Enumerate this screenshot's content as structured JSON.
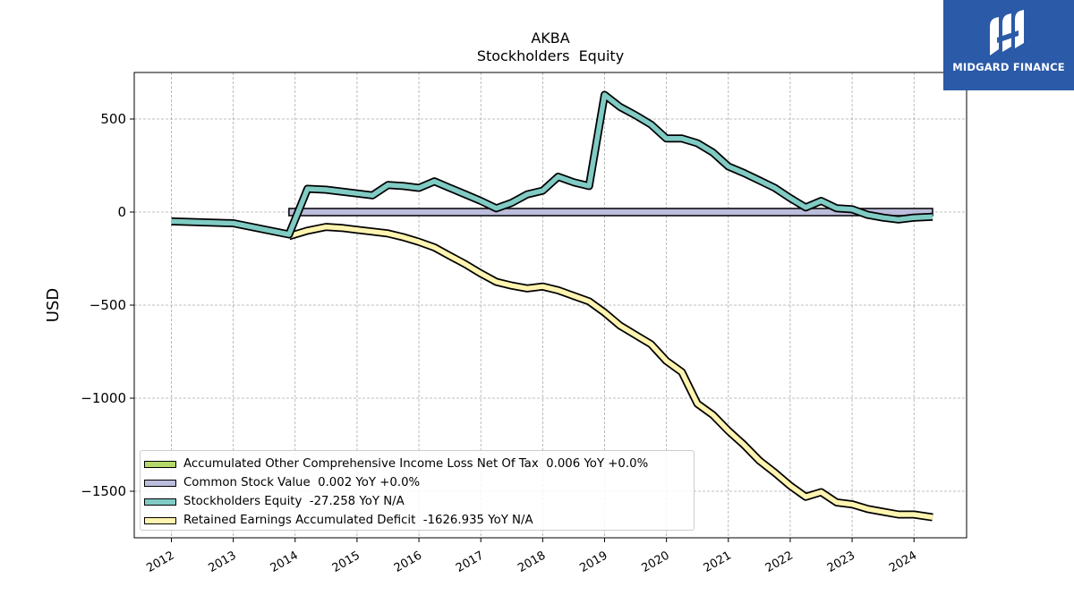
{
  "chart_data": {
    "type": "line",
    "title": "AKBA",
    "subtitle": "Stockholders  Equity",
    "ylabel": "USD",
    "xlabel": "",
    "ylim": [
      -1750,
      750
    ],
    "xlim": [
      2011.4,
      2024.85
    ],
    "yticks": [
      500,
      0,
      -500,
      -1000,
      -1500
    ],
    "ytick_labels": [
      "500",
      "0",
      "−500",
      "−1000",
      "−1500"
    ],
    "xticks": [
      2012,
      2013,
      2014,
      2015,
      2016,
      2017,
      2018,
      2019,
      2020,
      2021,
      2022,
      2023,
      2024
    ],
    "xtick_labels": [
      "2012",
      "2013",
      "2014",
      "2015",
      "2016",
      "2017",
      "2018",
      "2019",
      "2020",
      "2021",
      "2022",
      "2023",
      "2024"
    ],
    "grid": true,
    "legend_position": "lower-left",
    "series": [
      {
        "name": "Accumulated Other Comprehensive Income Loss Net Of Tax  0.006 YoY +0.0%",
        "color": "#b5d86a",
        "x": [],
        "y": []
      },
      {
        "name": "Common Stock Value  0.002 YoY +0.0%",
        "color": "#bcbddc",
        "x": [
          2013.9,
          2024.3
        ],
        "y": [
          0,
          0
        ]
      },
      {
        "name": "Stockholders Equity  -27.258 YoY N/A",
        "color": "#80cbc4",
        "x": [
          2012.0,
          2013.0,
          2013.9,
          2014.2,
          2014.5,
          2014.75,
          2015.0,
          2015.25,
          2015.5,
          2015.75,
          2016.0,
          2016.25,
          2016.5,
          2016.75,
          2017.0,
          2017.25,
          2017.5,
          2017.75,
          2018.0,
          2018.25,
          2018.5,
          2018.75,
          2019.0,
          2019.25,
          2019.5,
          2019.75,
          2020.0,
          2020.25,
          2020.5,
          2020.75,
          2021.0,
          2021.25,
          2021.5,
          2021.75,
          2022.0,
          2022.25,
          2022.5,
          2022.75,
          2023.0,
          2023.25,
          2023.5,
          2023.75,
          2024.0,
          2024.3
        ],
        "y": [
          -50,
          -60,
          -120,
          125,
          120,
          110,
          100,
          90,
          145,
          140,
          130,
          165,
          130,
          95,
          60,
          20,
          50,
          95,
          115,
          190,
          160,
          140,
          630,
          565,
          520,
          470,
          395,
          395,
          370,
          320,
          245,
          210,
          170,
          130,
          75,
          25,
          60,
          20,
          15,
          -15,
          -30,
          -40,
          -30,
          -25
        ]
      },
      {
        "name": "Retained Earnings Accumulated Deficit  -1626.935 YoY N/A",
        "color": "#fff4b0",
        "x": [
          2013.9,
          2014.2,
          2014.5,
          2014.75,
          2015.0,
          2015.25,
          2015.5,
          2015.75,
          2016.0,
          2016.25,
          2016.5,
          2016.75,
          2017.0,
          2017.25,
          2017.5,
          2017.75,
          2018.0,
          2018.25,
          2018.5,
          2018.75,
          2019.0,
          2019.25,
          2019.5,
          2019.75,
          2020.0,
          2020.25,
          2020.5,
          2020.75,
          2021.0,
          2021.25,
          2021.5,
          2021.75,
          2022.0,
          2022.25,
          2022.5,
          2022.75,
          2023.0,
          2023.25,
          2023.5,
          2023.75,
          2024.0,
          2024.3
        ],
        "y": [
          -130,
          -100,
          -80,
          -85,
          -95,
          -105,
          -115,
          -135,
          -160,
          -190,
          -235,
          -280,
          -330,
          -375,
          -395,
          -410,
          -400,
          -420,
          -450,
          -480,
          -540,
          -610,
          -660,
          -710,
          -800,
          -860,
          -1030,
          -1090,
          -1175,
          -1250,
          -1335,
          -1400,
          -1470,
          -1530,
          -1505,
          -1560,
          -1570,
          -1595,
          -1610,
          -1625,
          -1625,
          -1640
        ]
      }
    ]
  },
  "logo": {
    "text": "MIDGARD FINANCE",
    "color": "#2b5aa8"
  }
}
